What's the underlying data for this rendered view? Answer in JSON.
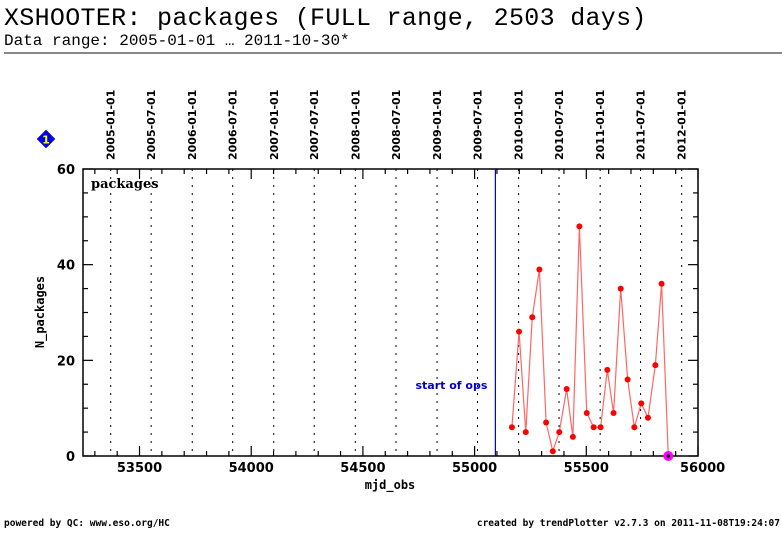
{
  "header": {
    "title": "XSHOOTER: packages (FULL range, 2503 days)",
    "subtitle": "Data range: 2005-01-01 … 2011-10-30*"
  },
  "footer": {
    "left": "powered by QC: www.eso.org/HC",
    "right": "created by trendPlotter v2.7.3 on 2011-11-08T19:24:07"
  },
  "badge": {
    "label": "1",
    "icon": "diamond-icon",
    "color": "#0000ee",
    "text_color": "#ffff00"
  },
  "colors": {
    "series": "#ff0000",
    "series_line": "#ff6666",
    "start_ops": "#0000cc",
    "last_point": "#ff00ff",
    "grid": "#000000"
  },
  "chart_data": {
    "type": "line",
    "panel_label": "packages",
    "xlabel": "mjd_obs",
    "ylabel": "N_packages",
    "xlim": [
      53247,
      56000
    ],
    "ylim": [
      0,
      60
    ],
    "x_ticks": [
      53500,
      54000,
      54500,
      55000,
      55500,
      56000
    ],
    "x_tick_labels": [
      "53500",
      "54000",
      "54500",
      "55000",
      "55500",
      "56000"
    ],
    "x_minor_step": 100,
    "y_ticks": [
      0,
      20,
      40,
      60
    ],
    "y_tick_labels": [
      "0",
      "20",
      "40",
      "60"
    ],
    "y_minor_step": 5,
    "date_grid": [
      {
        "label": "2005-01-01",
        "mjd": 53371
      },
      {
        "label": "2005-07-01",
        "mjd": 53552
      },
      {
        "label": "2006-01-01",
        "mjd": 53736
      },
      {
        "label": "2006-07-01",
        "mjd": 53917
      },
      {
        "label": "2007-01-01",
        "mjd": 54101
      },
      {
        "label": "2007-07-01",
        "mjd": 54282
      },
      {
        "label": "2008-01-01",
        "mjd": 54466
      },
      {
        "label": "2008-07-01",
        "mjd": 54648
      },
      {
        "label": "2009-01-01",
        "mjd": 54832
      },
      {
        "label": "2009-07-01",
        "mjd": 55013
      },
      {
        "label": "2010-01-01",
        "mjd": 55197
      },
      {
        "label": "2010-07-01",
        "mjd": 55378
      },
      {
        "label": "2011-01-01",
        "mjd": 55562
      },
      {
        "label": "2011-07-01",
        "mjd": 55743
      },
      {
        "label": "2012-01-01",
        "mjd": 55927
      }
    ],
    "annotation": {
      "label": "start of ops",
      "mjd": 55093
    },
    "series": [
      {
        "name": "packages",
        "x": [
          55167,
          55199,
          55229,
          55258,
          55290,
          55320,
          55350,
          55379,
          55412,
          55440,
          55469,
          55502,
          55533,
          55564,
          55594,
          55622,
          55654,
          55685,
          55715,
          55746,
          55776,
          55809,
          55837,
          55867
        ],
        "y": [
          6,
          26,
          5,
          29,
          39,
          7,
          1,
          5,
          14,
          4,
          48,
          9,
          6,
          6,
          18,
          9,
          35,
          16,
          6,
          11,
          8,
          19,
          36,
          0
        ]
      }
    ],
    "grid": "vertical dotted at date_grid",
    "legend": "none"
  }
}
